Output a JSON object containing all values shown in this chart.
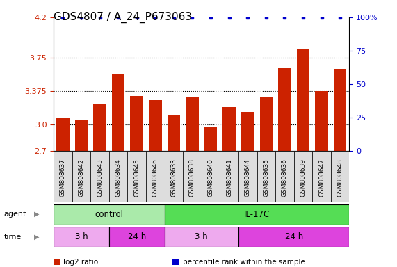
{
  "title": "GDS4807 / A_24_P673063",
  "samples": [
    "GSM808637",
    "GSM808642",
    "GSM808643",
    "GSM808634",
    "GSM808645",
    "GSM808646",
    "GSM808633",
    "GSM808638",
    "GSM808640",
    "GSM808641",
    "GSM808644",
    "GSM808635",
    "GSM808636",
    "GSM808639",
    "GSM808647",
    "GSM808648"
  ],
  "log2_values": [
    3.07,
    3.04,
    3.22,
    3.57,
    3.32,
    3.27,
    3.1,
    3.31,
    2.97,
    3.19,
    3.14,
    3.3,
    3.63,
    3.85,
    3.37,
    3.62
  ],
  "percentile_values": [
    100,
    100,
    100,
    100,
    100,
    100,
    100,
    100,
    100,
    100,
    100,
    100,
    100,
    100,
    100,
    100
  ],
  "bar_color": "#cc2200",
  "dot_color": "#0000cc",
  "ylim_left": [
    2.7,
    4.2
  ],
  "ylim_right": [
    0,
    100
  ],
  "yticks_left": [
    2.7,
    3.0,
    3.375,
    3.75,
    4.2
  ],
  "yticks_right": [
    0,
    25,
    50,
    75,
    100
  ],
  "dotted_lines": [
    3.0,
    3.375,
    3.75
  ],
  "agent_groups": [
    {
      "label": "control",
      "start": 0,
      "end": 6,
      "color": "#aaeaaa"
    },
    {
      "label": "IL-17C",
      "start": 6,
      "end": 16,
      "color": "#55dd55"
    }
  ],
  "time_groups": [
    {
      "label": "3 h",
      "start": 0,
      "end": 3,
      "color": "#eeaaee"
    },
    {
      "label": "24 h",
      "start": 3,
      "end": 6,
      "color": "#dd44dd"
    },
    {
      "label": "3 h",
      "start": 6,
      "end": 10,
      "color": "#eeaaee"
    },
    {
      "label": "24 h",
      "start": 10,
      "end": 16,
      "color": "#dd44dd"
    }
  ],
  "background_color": "#ffffff",
  "tick_label_color_left": "#cc2200",
  "tick_label_color_right": "#0000cc",
  "title_fontsize": 11,
  "bar_width": 0.7,
  "xticklabel_bg": "#dddddd"
}
